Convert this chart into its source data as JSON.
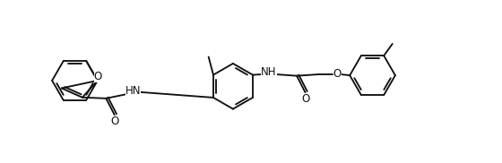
{
  "bg": "#ffffff",
  "lc": "#111111",
  "lw": 1.35,
  "fs": 8.5,
  "xlim": [
    -0.3,
    10.3
  ],
  "ylim": [
    0.1,
    3.3
  ],
  "r_hex": 0.48,
  "dbo": 0.055
}
